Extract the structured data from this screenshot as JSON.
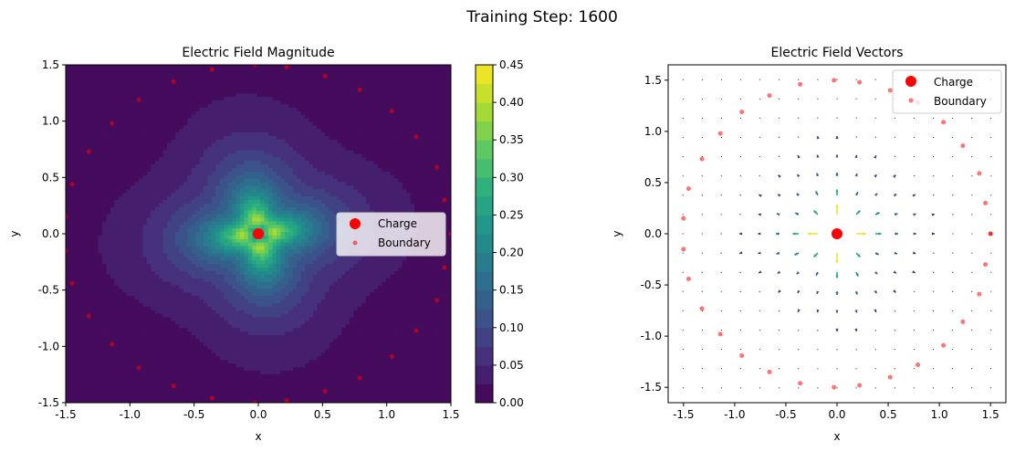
{
  "suptitle": "Training Step: 1600",
  "colors": {
    "charge": "#ff0000",
    "boundary": "#ff0000",
    "viridis": [
      "#440154",
      "#472d7b",
      "#3b528b",
      "#2c728e",
      "#21918c",
      "#28ae80",
      "#5ec962",
      "#addc30",
      "#fde725"
    ]
  },
  "chart_data": [
    {
      "type": "heatmap",
      "title": "Electric Field Magnitude",
      "xlabel": "x",
      "ylabel": "y",
      "xlim": [
        -1.5,
        1.5
      ],
      "ylim": [
        -1.5,
        1.5
      ],
      "xticks": [
        "-1.5",
        "-1.0",
        "-0.5",
        "0.0",
        "0.5",
        "1.0",
        "1.5"
      ],
      "yticks": [
        "-1.5",
        "-1.0",
        "-0.5",
        "0.0",
        "0.5",
        "1.0",
        "1.5"
      ],
      "colorbar": {
        "range": [
          0.0,
          0.45
        ],
        "levels": [
          0.0,
          0.025,
          0.05,
          0.075,
          0.1,
          0.125,
          0.15,
          0.175,
          0.2,
          0.225,
          0.25,
          0.275,
          0.3,
          0.325,
          0.35,
          0.375,
          0.4,
          0.425,
          0.45
        ],
        "ticks": [
          "0.00",
          "0.05",
          "0.10",
          "0.15",
          "0.20",
          "0.25",
          "0.30",
          "0.35",
          "0.40",
          "0.45"
        ]
      },
      "field_peak": 0.45,
      "charge": {
        "label": "Charge",
        "x": 0.0,
        "y": 0.0
      },
      "boundary": {
        "label": "Boundary",
        "points": [
          [
            1.5,
            0.0
          ],
          [
            1.45,
            0.3
          ],
          [
            1.39,
            0.59
          ],
          [
            1.23,
            0.86
          ],
          [
            1.04,
            1.09
          ],
          [
            0.79,
            1.28
          ],
          [
            0.52,
            1.4
          ],
          [
            0.22,
            1.48
          ],
          [
            -0.03,
            1.5
          ],
          [
            -0.36,
            1.46
          ],
          [
            -0.66,
            1.35
          ],
          [
            -0.93,
            1.19
          ],
          [
            -1.14,
            0.98
          ],
          [
            -1.32,
            0.73
          ],
          [
            -1.45,
            0.44
          ],
          [
            -1.5,
            0.15
          ],
          [
            -1.5,
            -0.15
          ],
          [
            -1.45,
            -0.44
          ],
          [
            -1.32,
            -0.73
          ],
          [
            -1.14,
            -0.98
          ],
          [
            -0.93,
            -1.19
          ],
          [
            -0.66,
            -1.35
          ],
          [
            -0.36,
            -1.46
          ],
          [
            -0.03,
            -1.5
          ],
          [
            0.22,
            -1.48
          ],
          [
            0.52,
            -1.4
          ],
          [
            0.79,
            -1.28
          ],
          [
            1.04,
            -1.09
          ],
          [
            1.23,
            -0.86
          ],
          [
            1.39,
            -0.59
          ],
          [
            1.45,
            -0.3
          ],
          [
            1.5,
            0.0
          ]
        ]
      },
      "legend_loc": "center-right"
    },
    {
      "type": "quiver",
      "title": "Electric Field Vectors",
      "xlabel": "x",
      "ylabel": "y",
      "xlim": [
        -1.65,
        1.65
      ],
      "ylim": [
        -1.65,
        1.65
      ],
      "xticks": [
        "-1.5",
        "-1.0",
        "-0.5",
        "0.0",
        "0.5",
        "1.0",
        "1.5"
      ],
      "yticks": [
        "-1.5",
        "-1.0",
        "-0.5",
        "0.0",
        "0.5",
        "1.0",
        "1.5"
      ],
      "grid_range": [
        -1.5,
        1.5
      ],
      "grid_n": 17,
      "charge": {
        "label": "Charge",
        "x": 0.0,
        "y": 0.0
      },
      "boundary": {
        "label": "Boundary",
        "points": [
          [
            1.5,
            0.0
          ],
          [
            1.45,
            0.3
          ],
          [
            1.39,
            0.59
          ],
          [
            1.23,
            0.86
          ],
          [
            1.04,
            1.09
          ],
          [
            0.79,
            1.28
          ],
          [
            0.52,
            1.4
          ],
          [
            0.22,
            1.48
          ],
          [
            -0.03,
            1.5
          ],
          [
            -0.36,
            1.46
          ],
          [
            -0.66,
            1.35
          ],
          [
            -0.93,
            1.19
          ],
          [
            -1.14,
            0.98
          ],
          [
            -1.32,
            0.73
          ],
          [
            -1.45,
            0.44
          ],
          [
            -1.5,
            0.15
          ],
          [
            -1.5,
            -0.15
          ],
          [
            -1.45,
            -0.44
          ],
          [
            -1.32,
            -0.73
          ],
          [
            -1.14,
            -0.98
          ],
          [
            -0.93,
            -1.19
          ],
          [
            -0.66,
            -1.35
          ],
          [
            -0.36,
            -1.46
          ],
          [
            -0.03,
            -1.5
          ],
          [
            0.22,
            -1.48
          ],
          [
            0.52,
            -1.4
          ],
          [
            0.79,
            -1.28
          ],
          [
            1.04,
            -1.09
          ],
          [
            1.23,
            -0.86
          ],
          [
            1.39,
            -0.59
          ],
          [
            1.45,
            -0.3
          ],
          [
            1.5,
            0.0
          ]
        ]
      },
      "legend_loc": "top-right"
    }
  ]
}
